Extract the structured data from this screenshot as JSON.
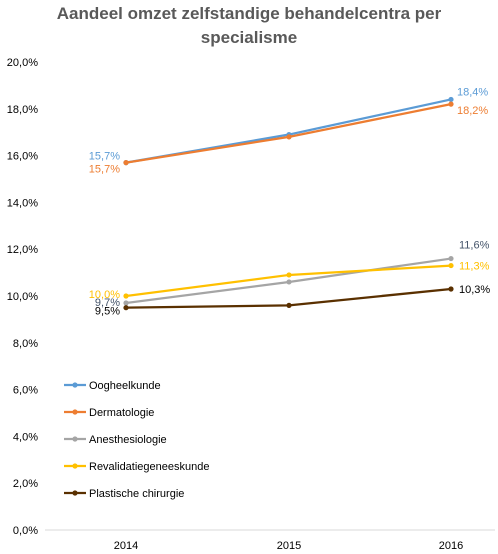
{
  "chart_data": {
    "type": "line",
    "title": [
      "Aandeel omzet zelfstandige behandelcentra per",
      "specialisme"
    ],
    "xlabel": "",
    "ylabel": "",
    "x": [
      "2014",
      "2015",
      "2016"
    ],
    "ylim": [
      0,
      20
    ],
    "yticks": [
      "0,0%",
      "2,0%",
      "4,0%",
      "6,0%",
      "8,0%",
      "10,0%",
      "12,0%",
      "14,0%",
      "16,0%",
      "18,0%",
      "20,0%"
    ],
    "grid": false,
    "legend_position": "bottom-left (inside plot)",
    "series": [
      {
        "name": "Oogheelkunde",
        "color": "#5B9BD5",
        "values": [
          15.7,
          16.9,
          18.4
        ],
        "labels": [
          "15,7%",
          "",
          "18,4%"
        ]
      },
      {
        "name": "Dermatologie",
        "color": "#ED7D31",
        "values": [
          15.7,
          16.8,
          18.2
        ],
        "labels": [
          "15,7%",
          "",
          "18,2%"
        ]
      },
      {
        "name": "Anesthesiologie",
        "color": "#A5A5A5",
        "values": [
          9.7,
          10.6,
          11.6
        ],
        "labels": [
          "9,7%",
          "",
          "11,6%"
        ]
      },
      {
        "name": "Revalidatiegeneeskunde",
        "color": "#FFC000",
        "values": [
          10.0,
          10.9,
          11.3
        ],
        "labels": [
          "10,0%",
          "",
          "11,3%"
        ]
      },
      {
        "name": "Plastische chirurgie",
        "color": "#5A3000",
        "values": [
          9.5,
          9.6,
          10.3
        ],
        "labels": [
          "9,5%",
          "",
          "10,3%"
        ]
      }
    ],
    "label_colors": [
      "#5B9BD5",
      "#ED7D31",
      "#44546A",
      "#FFC000",
      "#000000"
    ]
  }
}
